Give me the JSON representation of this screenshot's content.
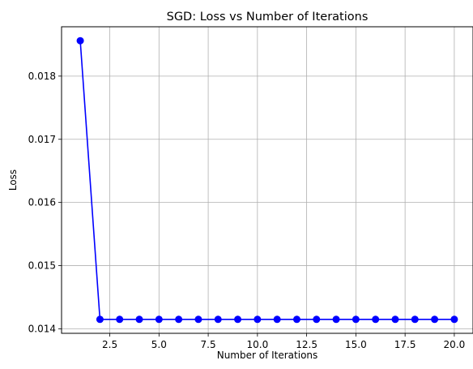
{
  "chart_data": {
    "type": "line",
    "title": "SGD: Loss vs Number of Iterations",
    "xlabel": "Number of Iterations",
    "ylabel": "Loss",
    "x": [
      1,
      2,
      3,
      4,
      5,
      6,
      7,
      8,
      9,
      10,
      11,
      12,
      13,
      14,
      15,
      16,
      17,
      18,
      19,
      20
    ],
    "series": [
      {
        "values": [
          0.01856,
          0.01415,
          0.01415,
          0.01415,
          0.01415,
          0.01415,
          0.01415,
          0.01415,
          0.01415,
          0.01415,
          0.01415,
          0.01415,
          0.01415,
          0.01415,
          0.01415,
          0.01415,
          0.01415,
          0.01415,
          0.01415,
          0.01415
        ],
        "color": "#0000ff",
        "marker": "circle"
      }
    ],
    "xlim": [
      0.05,
      20.95
    ],
    "ylim": [
      0.013929,
      0.018781
    ],
    "xticks": [
      2.5,
      5.0,
      7.5,
      10.0,
      12.5,
      15.0,
      17.5,
      20.0
    ],
    "xtick_labels": [
      "2.5",
      "5.0",
      "7.5",
      "10.0",
      "12.5",
      "15.0",
      "17.5",
      "20.0"
    ],
    "yticks": [
      0.014,
      0.015,
      0.016,
      0.017,
      0.018
    ],
    "ytick_labels": [
      "0.014",
      "0.015",
      "0.016",
      "0.017",
      "0.018"
    ],
    "grid": true
  }
}
